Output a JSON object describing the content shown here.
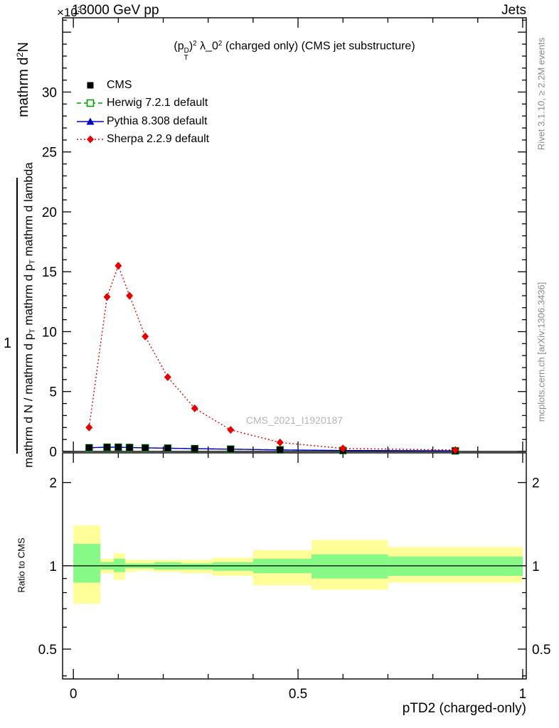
{
  "header": {
    "scale_prefix": "×10",
    "scale_exp": "3",
    "beam": "13000 GeV pp",
    "right": "Jets"
  },
  "sidebar_right": {
    "top": "Rivet 3.1.10, ≥ 2.2M events",
    "bottom": "mcplots.cern.ch [arXiv:1306.3436]"
  },
  "watermark": "CMS_2021_I1920187",
  "ylabel": {
    "top_pre": "mathrm d",
    "top_sup": "2",
    "top_post": "N",
    "one": "1",
    "main_parts": [
      "mathrm d N / mathrm d p",
      "T",
      " mathrm d p",
      "T",
      " mathrm d lambda"
    ]
  },
  "title": {
    "p1": "(p",
    "sup1": "D",
    "sub1": "T",
    "p2": ")",
    "sup2": "2",
    "p3": " λ_0",
    "sup3": "2",
    "p4": " (charged only) (CMS jet substructure)"
  },
  "chart_data": {
    "type": "line",
    "title": "(p_T^D)^2 λ_0^2 (charged only) (CMS jet substructure)",
    "xlabel": "pTD2 (charged-only)",
    "ylabel": "mathrm d^2N / mathrm d N mathrm d p_T mathrm d p_T mathrm d lambda",
    "y_multiplier": "×10^3",
    "legend_position": "top-left",
    "grid": false,
    "xlim": [
      -0.024,
      1.008
    ],
    "ylim": [
      0,
      36.2
    ],
    "xticks": [
      {
        "v": 0,
        "label": "0"
      },
      {
        "v": 0.5,
        "label": "0.5"
      },
      {
        "v": 1,
        "label": "1"
      }
    ],
    "xminors": [
      0.1,
      0.2,
      0.3,
      0.4,
      0.6,
      0.7,
      0.8,
      0.9
    ],
    "yticks": [
      {
        "v": 0,
        "label": "0"
      },
      {
        "v": 5,
        "label": "5"
      },
      {
        "v": 10,
        "label": "10"
      },
      {
        "v": 15,
        "label": "15"
      },
      {
        "v": 20,
        "label": "20"
      },
      {
        "v": 25,
        "label": "25"
      },
      {
        "v": 30,
        "label": "30"
      }
    ],
    "x": [
      0.035,
      0.075,
      0.1,
      0.125,
      0.16,
      0.21,
      0.27,
      0.35,
      0.46,
      0.6,
      0.85
    ],
    "series": [
      {
        "name": "CMS",
        "color": "#000000",
        "marker": "square-filled",
        "line": "none",
        "values": [
          0.32,
          0.36,
          0.36,
          0.34,
          0.3,
          0.28,
          0.24,
          0.2,
          0.14,
          0.08,
          0.05
        ]
      },
      {
        "name": "Herwig 7.2.1 default",
        "color": "#00a000",
        "marker": "square-open",
        "line": "dashed",
        "values": [
          0.3,
          0.35,
          0.35,
          0.33,
          0.3,
          0.27,
          0.23,
          0.19,
          0.13,
          0.08,
          0.05
        ]
      },
      {
        "name": "Pythia 8.308 default",
        "color": "#0000cc",
        "marker": "triangle-filled",
        "line": "solid",
        "values": [
          0.31,
          0.35,
          0.35,
          0.33,
          0.3,
          0.27,
          0.23,
          0.19,
          0.13,
          0.08,
          0.05
        ]
      },
      {
        "name": "Sherpa 2.2.9 default",
        "color": "#e60000",
        "marker": "diamond-filled",
        "line": "dotted",
        "values": [
          2.0,
          12.9,
          15.5,
          13.0,
          9.6,
          6.2,
          3.6,
          1.8,
          0.75,
          0.25,
          0.12
        ]
      }
    ],
    "ratio": {
      "ylabel": "Ratio to CMS",
      "scale": "log",
      "ylim": [
        0.39,
        2.56
      ],
      "yticks": [
        {
          "v": 0.5,
          "label": "0.5"
        },
        {
          "v": 1,
          "label": "1"
        },
        {
          "v": 2,
          "label": "2"
        }
      ],
      "yminors": [
        0.4,
        0.6,
        0.7,
        0.8,
        0.9
      ],
      "reference_line": 1,
      "band_colors": {
        "outer": "#ffff99",
        "inner": "#86f986"
      },
      "bins": [
        {
          "x0": 0.0,
          "x1": 0.06,
          "yellow": [
            0.73,
            1.4
          ],
          "green": [
            0.87,
            1.2
          ]
        },
        {
          "x0": 0.06,
          "x1": 0.09,
          "yellow": [
            0.94,
            1.06
          ],
          "green": [
            0.97,
            1.03
          ]
        },
        {
          "x0": 0.09,
          "x1": 0.115,
          "yellow": [
            0.89,
            1.11
          ],
          "green": [
            0.95,
            1.06
          ]
        },
        {
          "x0": 0.115,
          "x1": 0.14,
          "yellow": [
            0.95,
            1.05
          ],
          "green": [
            0.98,
            1.02
          ]
        },
        {
          "x0": 0.14,
          "x1": 0.18,
          "yellow": [
            0.96,
            1.05
          ],
          "green": [
            0.98,
            1.02
          ]
        },
        {
          "x0": 0.18,
          "x1": 0.24,
          "yellow": [
            0.95,
            1.05
          ],
          "green": [
            0.97,
            1.03
          ]
        },
        {
          "x0": 0.24,
          "x1": 0.31,
          "yellow": [
            0.94,
            1.05
          ],
          "green": [
            0.97,
            1.02
          ]
        },
        {
          "x0": 0.31,
          "x1": 0.4,
          "yellow": [
            0.92,
            1.07
          ],
          "green": [
            0.96,
            1.03
          ]
        },
        {
          "x0": 0.4,
          "x1": 0.53,
          "yellow": [
            0.85,
            1.14
          ],
          "green": [
            0.94,
            1.06
          ]
        },
        {
          "x0": 0.53,
          "x1": 0.7,
          "yellow": [
            0.82,
            1.24
          ],
          "green": [
            0.9,
            1.1
          ]
        },
        {
          "x0": 0.7,
          "x1": 1.0,
          "yellow": [
            0.87,
            1.17
          ],
          "green": [
            0.92,
            1.08
          ]
        }
      ]
    }
  }
}
